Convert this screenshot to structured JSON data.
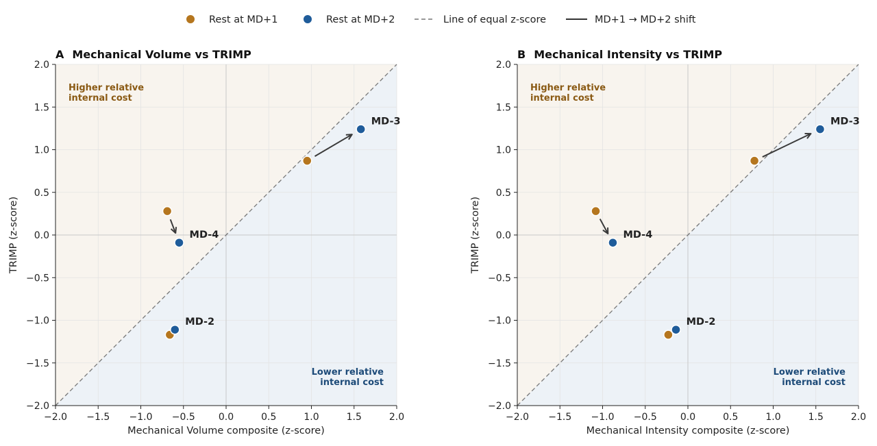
{
  "colors": {
    "md1": "#B5761E",
    "md2": "#1F5C9A",
    "upper_bg": "#F8F4EE",
    "lower_bg": "#EDF2F7",
    "upper_text": "#8A5A14",
    "lower_text": "#1C4A78",
    "diagonal": "#777777",
    "arrow": "#3A3A3A"
  },
  "legend": {
    "entries": [
      {
        "label": "Rest at MD+1",
        "kind": "marker-md1"
      },
      {
        "label": "Rest at MD+2",
        "kind": "marker-md2"
      },
      {
        "label": "Line of equal z-score",
        "kind": "dashed-line"
      },
      {
        "label": "MD+1 → MD+2 shift",
        "kind": "solid-line"
      }
    ]
  },
  "chart_data": [
    {
      "type": "scatter",
      "panel_letter": "A",
      "title": "Mechanical Volume vs TRIMP",
      "xlabel": "Mechanical Volume composite (z-score)",
      "ylabel": "TRIMP (z-score)",
      "xlim": [
        -2.0,
        2.0
      ],
      "ylim": [
        -2.0,
        2.0
      ],
      "xticks": [
        "−2.0",
        "−1.5",
        "−1.0",
        "−0.5",
        "0.0",
        "0.5",
        "1.0",
        "1.5",
        "2.0"
      ],
      "yticks": [
        "−2.0",
        "−1.5",
        "−1.0",
        "−0.5",
        "0.0",
        "0.5",
        "1.0",
        "1.5",
        "2.0"
      ],
      "grid": true,
      "upper_region_label": [
        "Higher relative",
        "internal cost"
      ],
      "lower_region_label": [
        "Lower relative",
        "internal cost"
      ],
      "series": [
        {
          "name": "Rest at MD+1",
          "points": [
            {
              "x": -0.69,
              "y": 0.28
            },
            {
              "x": 0.95,
              "y": 0.87
            },
            {
              "x": -0.66,
              "y": -1.17
            }
          ]
        },
        {
          "name": "Rest at MD+2",
          "points": [
            {
              "x": -0.55,
              "y": -0.09
            },
            {
              "x": 1.58,
              "y": 1.24
            },
            {
              "x": -0.6,
              "y": -1.11
            }
          ]
        }
      ],
      "point_labels": [
        {
          "text": "MD-4",
          "x": -0.55,
          "y": -0.09
        },
        {
          "text": "MD-3",
          "x": 1.58,
          "y": 1.24
        },
        {
          "text": "MD-2",
          "x": -0.6,
          "y": -1.11
        }
      ],
      "arrows": [
        {
          "from": [
            -0.69,
            0.28
          ],
          "to": [
            -0.55,
            -0.09
          ]
        },
        {
          "from": [
            0.95,
            0.87
          ],
          "to": [
            1.58,
            1.24
          ]
        }
      ]
    },
    {
      "type": "scatter",
      "panel_letter": "B",
      "title": "Mechanical Intensity vs TRIMP",
      "xlabel": "Mechanical Intensity composite (z-score)",
      "ylabel": "TRIMP (z-score)",
      "xlim": [
        -2.0,
        2.0
      ],
      "ylim": [
        -2.0,
        2.0
      ],
      "xticks": [
        "−2.0",
        "−1.5",
        "−1.0",
        "−0.5",
        "0.0",
        "0.5",
        "1.0",
        "1.5",
        "2.0"
      ],
      "yticks": [
        "−2.0",
        "−1.5",
        "−1.0",
        "−0.5",
        "0.0",
        "0.5",
        "1.0",
        "1.5",
        "2.0"
      ],
      "grid": true,
      "upper_region_label": [
        "Higher relative",
        "internal cost"
      ],
      "lower_region_label": [
        "Lower relative",
        "internal cost"
      ],
      "series": [
        {
          "name": "Rest at MD+1",
          "points": [
            {
              "x": -1.08,
              "y": 0.28
            },
            {
              "x": 0.78,
              "y": 0.87
            },
            {
              "x": -0.23,
              "y": -1.17
            }
          ]
        },
        {
          "name": "Rest at MD+2",
          "points": [
            {
              "x": -0.88,
              "y": -0.09
            },
            {
              "x": 1.55,
              "y": 1.24
            },
            {
              "x": -0.14,
              "y": -1.11
            }
          ]
        }
      ],
      "point_labels": [
        {
          "text": "MD-4",
          "x": -0.88,
          "y": -0.09
        },
        {
          "text": "MD-3",
          "x": 1.55,
          "y": 1.24
        },
        {
          "text": "MD-2",
          "x": -0.14,
          "y": -1.11
        }
      ],
      "arrows": [
        {
          "from": [
            -1.08,
            0.28
          ],
          "to": [
            -0.88,
            -0.09
          ]
        },
        {
          "from": [
            0.78,
            0.87
          ],
          "to": [
            1.55,
            1.24
          ]
        }
      ]
    }
  ]
}
